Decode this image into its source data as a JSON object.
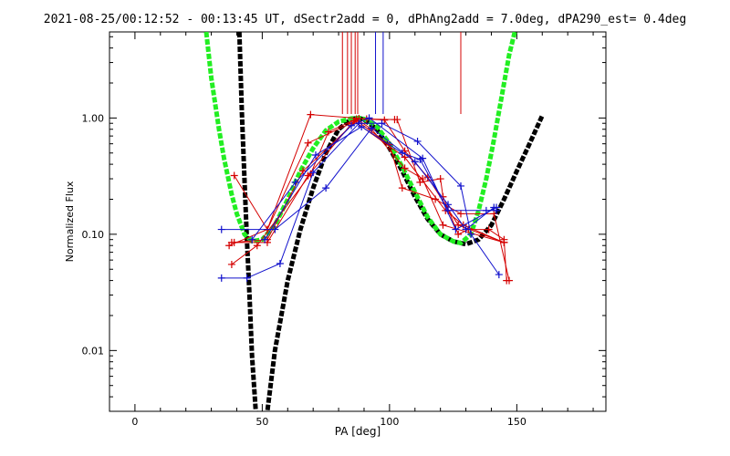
{
  "chart_data": {
    "type": "scatter",
    "title": "2021-08-25/00:12:52 - 00:13:45 UT, dSectr2add = 0, dPhAng2add = 7.0deg, dPA290_est=  0.4deg",
    "xlabel": "PA [deg]",
    "ylabel": "Normalized Flux",
    "xlim": [
      -10,
      185
    ],
    "ylim": [
      0.003,
      5.5
    ],
    "yscale": "log",
    "x_ticks": [
      0,
      50,
      100,
      150
    ],
    "x_tick_labels": [
      "0",
      "50",
      "100",
      "150"
    ],
    "y_ticks": [
      0.01,
      0.1,
      1.0
    ],
    "y_tick_labels": [
      "0.01",
      "0.10",
      "1.00"
    ],
    "grid": false,
    "colors": {
      "red": "#d40000",
      "blue": "#1010cc",
      "green": "#22ee22",
      "black": "#000000"
    },
    "series": [
      {
        "color": "red",
        "points": [
          [
            39,
            0.32
          ],
          [
            52,
            0.11
          ],
          [
            69,
            1.07
          ],
          [
            91,
            0.98
          ],
          [
            102,
            0.97
          ],
          [
            103,
            0.97
          ],
          [
            112,
            0.28
          ],
          [
            120,
            0.3
          ],
          [
            121,
            0.21
          ],
          [
            127,
            0.1
          ],
          [
            131,
            0.11
          ],
          [
            139,
            0.11
          ],
          [
            145,
            0.09
          ],
          [
            146,
            0.04
          ]
        ]
      },
      {
        "color": "red",
        "points": [
          [
            37,
            0.08
          ],
          [
            52,
            0.11
          ],
          [
            68,
            0.61
          ],
          [
            85,
            0.9
          ],
          [
            87,
            0.95
          ],
          [
            100,
            0.59
          ],
          [
            105,
            0.25
          ],
          [
            118,
            0.2
          ],
          [
            128,
            0.15
          ],
          [
            141,
            0.15
          ],
          [
            147,
            0.04
          ]
        ]
      },
      {
        "color": "red",
        "points": [
          [
            38,
            0.085
          ],
          [
            52,
            0.09
          ],
          [
            66,
            0.35
          ],
          [
            88,
            0.99
          ],
          [
            98,
            0.96
          ],
          [
            106,
            0.52
          ],
          [
            115,
            0.31
          ],
          [
            127,
            0.12
          ],
          [
            145,
            0.085
          ]
        ]
      },
      {
        "color": "red",
        "points": [
          [
            38,
            0.055
          ],
          [
            48,
            0.08
          ],
          [
            69,
            0.33
          ],
          [
            76,
            0.76
          ],
          [
            87,
            0.98
          ],
          [
            93,
            0.8
          ],
          [
            106,
            0.37
          ],
          [
            113,
            0.3
          ],
          [
            121,
            0.12
          ],
          [
            145,
            0.085
          ]
        ]
      },
      {
        "color": "red",
        "points": [
          [
            39,
            0.085
          ],
          [
            52,
            0.085
          ],
          [
            68,
            0.32
          ],
          [
            86,
            0.94
          ],
          [
            106,
            0.46
          ],
          [
            122,
            0.16
          ],
          [
            129,
            0.12
          ],
          [
            145,
            0.085
          ]
        ]
      },
      {
        "color": "blue",
        "points": [
          [
            34,
            0.042
          ],
          [
            44,
            0.042
          ],
          [
            57,
            0.056
          ],
          [
            70,
            0.34
          ],
          [
            88,
            0.9
          ],
          [
            97,
            0.9
          ],
          [
            111,
            0.63
          ],
          [
            128,
            0.26
          ],
          [
            132,
            0.1
          ],
          [
            143,
            0.045
          ]
        ]
      },
      {
        "color": "blue",
        "points": [
          [
            34,
            0.11
          ],
          [
            55,
            0.11
          ],
          [
            75,
            0.25
          ],
          [
            93,
            0.82
          ],
          [
            110,
            0.42
          ],
          [
            123,
            0.18
          ],
          [
            130,
            0.11
          ],
          [
            141,
            0.17
          ]
        ]
      },
      {
        "color": "blue",
        "points": [
          [
            51,
            0.09
          ],
          [
            71,
            0.48
          ],
          [
            89,
            0.84
          ],
          [
            105,
            0.5
          ],
          [
            112,
            0.44
          ],
          [
            123,
            0.16
          ],
          [
            138,
            0.16
          ],
          [
            142,
            0.16
          ]
        ]
      },
      {
        "color": "blue",
        "points": [
          [
            46,
            0.09
          ],
          [
            63,
            0.28
          ],
          [
            85,
            0.86
          ],
          [
            92,
            1.0
          ],
          [
            113,
            0.45
          ],
          [
            126,
            0.11
          ],
          [
            142,
            0.17
          ]
        ]
      }
    ],
    "model_curves": [
      {
        "color": "black",
        "style": "thick-dashed",
        "x": [
          41,
          42,
          43,
          44,
          45,
          46,
          48,
          50,
          52,
          55,
          60,
          65,
          70,
          75,
          80,
          85,
          88,
          90,
          95,
          100,
          105,
          110,
          115,
          120,
          125,
          130,
          135,
          140,
          145,
          150,
          155,
          160
        ],
        "y": [
          5.5,
          1.1,
          0.3,
          0.09,
          0.03,
          0.009,
          0.002,
          0.0015,
          0.003,
          0.01,
          0.04,
          0.11,
          0.25,
          0.5,
          0.8,
          0.98,
          1.0,
          0.97,
          0.8,
          0.55,
          0.35,
          0.21,
          0.135,
          0.1,
          0.087,
          0.082,
          0.09,
          0.12,
          0.2,
          0.35,
          0.6,
          1.05
        ]
      },
      {
        "color": "green",
        "style": "thick-dashed",
        "x": [
          28,
          30,
          33,
          35,
          38,
          40,
          43,
          46,
          50,
          55,
          60,
          65,
          70,
          75,
          80,
          85,
          88,
          90,
          95,
          100,
          105,
          110,
          115,
          120,
          125,
          128,
          132,
          135,
          138,
          141,
          144,
          147,
          150
        ],
        "y": [
          5.5,
          2.2,
          0.8,
          0.45,
          0.22,
          0.15,
          0.1,
          0.087,
          0.09,
          0.12,
          0.2,
          0.35,
          0.55,
          0.78,
          0.93,
          0.99,
          1.0,
          0.98,
          0.85,
          0.6,
          0.38,
          0.23,
          0.14,
          0.1,
          0.087,
          0.084,
          0.1,
          0.16,
          0.3,
          0.65,
          1.5,
          3.5,
          6.5
        ]
      }
    ],
    "vertical_markers": [
      {
        "color": "red",
        "x": [
          81.5,
          83.5,
          85,
          86.5,
          87.5,
          128
        ]
      },
      {
        "color": "blue",
        "x": [
          94.5,
          97.5
        ]
      }
    ]
  }
}
